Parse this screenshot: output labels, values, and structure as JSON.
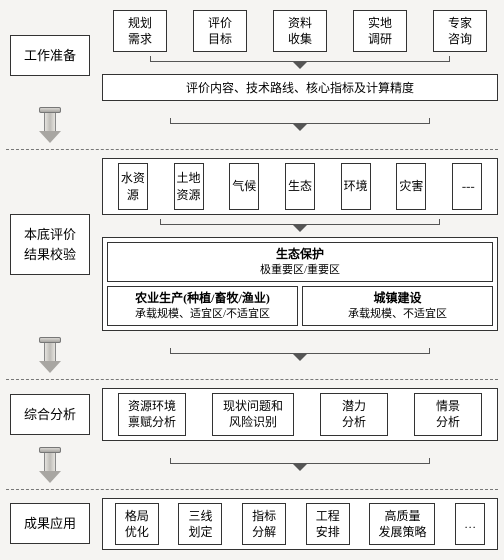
{
  "colors": {
    "border": "#333333",
    "bg": "#f5f4f2",
    "box_bg": "#ffffff",
    "dash": "#777777"
  },
  "stages": {
    "s1": {
      "label": "工作准备",
      "top": [
        "规划\n需求",
        "评价\n目标",
        "资料\n收集",
        "实地\n调研",
        "专家\n咨询"
      ],
      "bar": "评价内容、技术路线、核心指标及计算精度"
    },
    "s2": {
      "label": "本底评价\n结果校验",
      "factors": [
        "水资源",
        "土地资源",
        "气候",
        "生态",
        "环境",
        "灾害"
      ],
      "eco_title": "生态保护",
      "eco_sub": "极重要区/重要区",
      "agri_title": "农业生产(种植/畜牧/渔业)",
      "agri_sub": "承载规模、适宜区/不适宜区",
      "urban_title": "城镇建设",
      "urban_sub": "承载规模、不适宜区"
    },
    "s3": {
      "label": "综合分析",
      "items": [
        "资源环境\n禀赋分析",
        "现状问题和\n风险识别",
        "潜力\n分析",
        "情景\n分析"
      ]
    },
    "s4": {
      "label": "成果应用",
      "items": [
        "格局\n优化",
        "三线\n划定",
        "指标\n分解",
        "工程\n安排",
        "高质量\n发展策略",
        "…"
      ]
    }
  }
}
